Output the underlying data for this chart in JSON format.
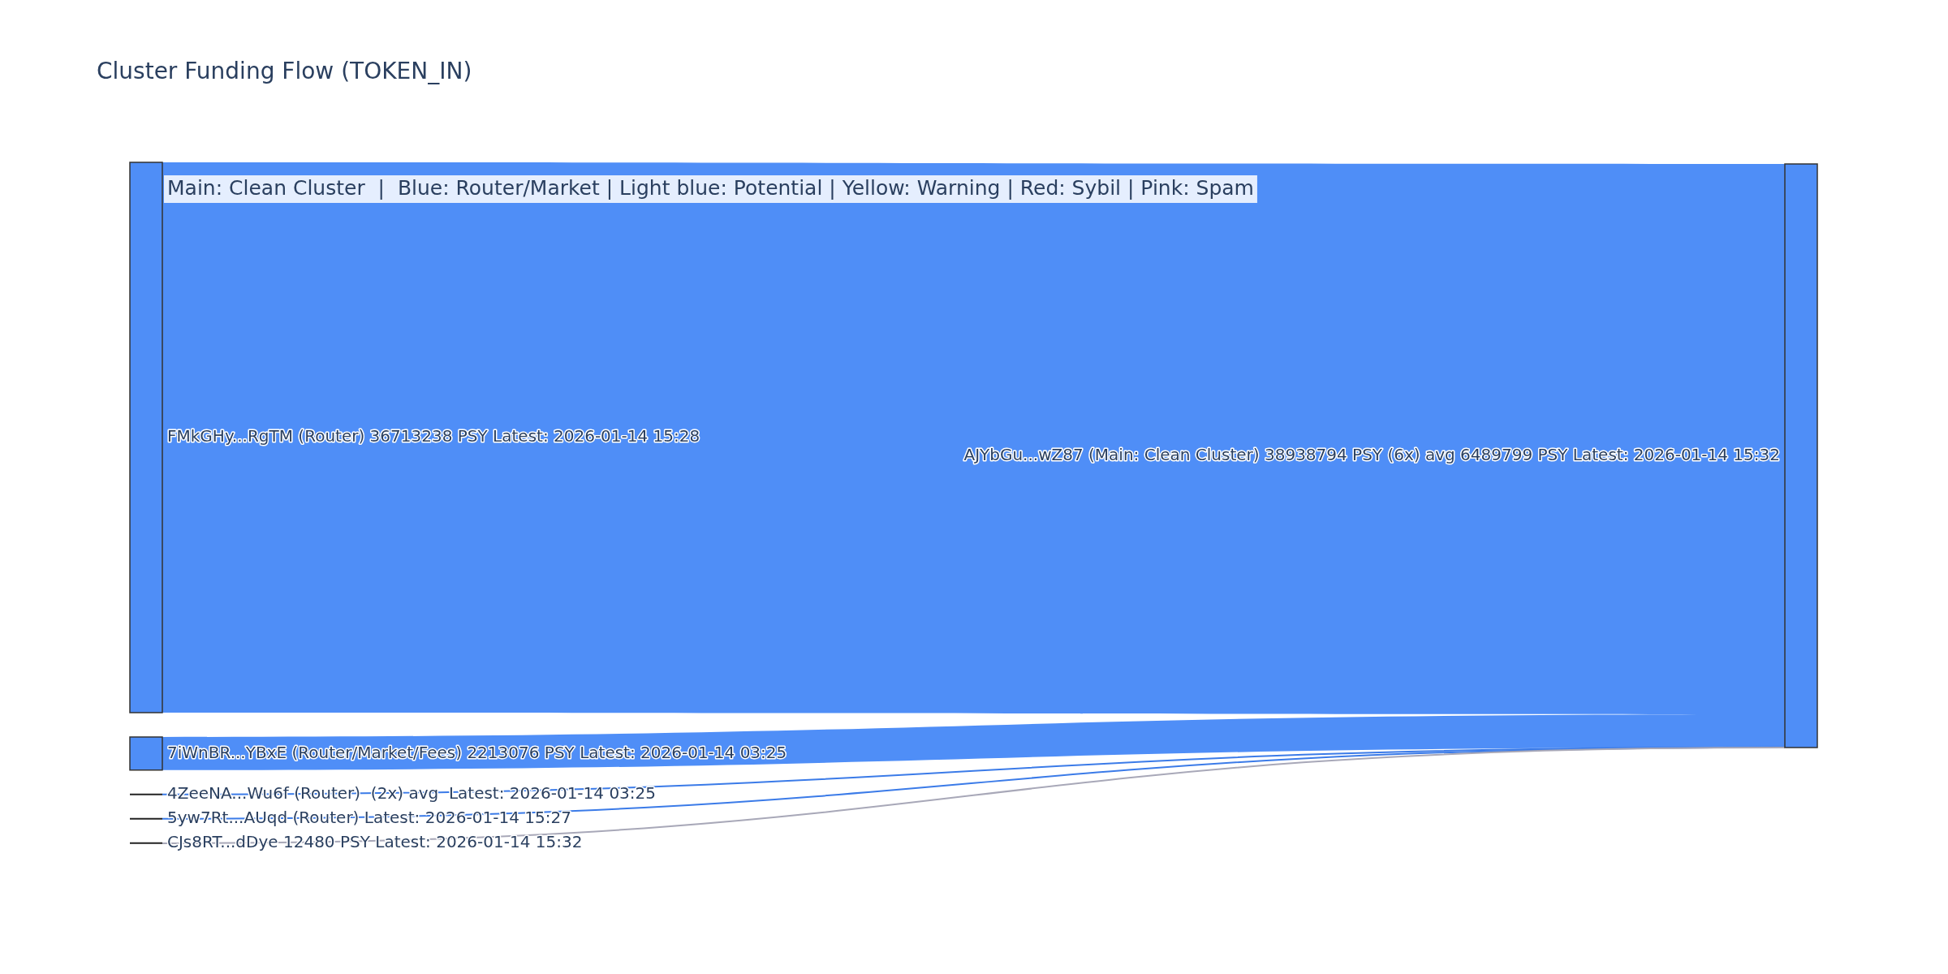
{
  "chart_data": {
    "type": "other",
    "title": "Cluster Funding Flow (TOKEN_IN)",
    "categories": [
      "FMkGHy...RgTM (Router) 36713238 PSY Latest: 2026-01-14 15:28",
      "7iWnBR...YBxE (Router/Market/Fees) 2213076 PSY Latest: 2026-01-14 03:25",
      "4ZeeNA...Wu6f (Router)  (2x) avg  Latest: 2026-01-14 03:25",
      "5yw7Rt...AUqd (Router) Latest: 2026-01-14 15:27",
      "CJs8RT...dDye 12480 PSY Latest: 2026-01-14 15:32"
    ],
    "values": [
      36713238,
      2213076,
      null,
      null,
      12480
    ],
    "colors": [
      "#4f8ef7",
      "#4f8ef7",
      "#3b7be8",
      "#3b7be8",
      "#a8a8b8"
    ],
    "color": "#4f8ef7",
    "data_labels": true,
    "y2_categories": [
      "AJYbGu...wZ87 (Main: Clean Cluster) 38938794 PSY (6x) avg 6489799 PSY Latest: 2026-01-14 15:32"
    ],
    "annotations": [
      "Main: Clean Cluster  |  Blue: Router/Market | Light blue: Potential | Yellow: Warning | Red: Sybil | Pink: Spam"
    ]
  }
}
